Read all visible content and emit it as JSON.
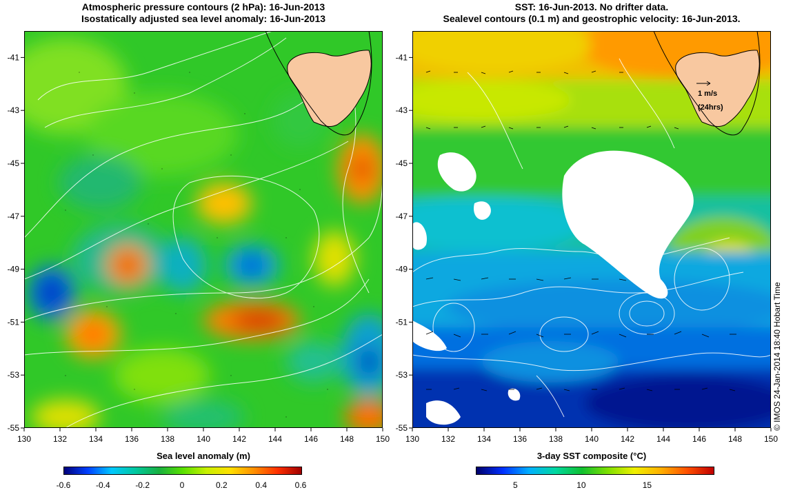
{
  "left_panel": {
    "title_line1": "Atmospheric pressure contours (2 hPa): 16-Jun-2013",
    "title_line2": "Isostatically adjusted sea level anomaly: 16-Jun-2013",
    "colorbar_title": "Sea level anomaly (m)",
    "colorbar_ticks": [
      "-0.6",
      "-0.4",
      "-0.2",
      "0",
      "0.2",
      "0.4",
      "0.6"
    ],
    "colorbar_range": [
      -0.6,
      0.6
    ]
  },
  "right_panel": {
    "title_line1": "SST: 16-Jun-2013. No drifter data.",
    "title_line2": "Sealevel contours (0.1 m) and geostrophic velocity: 16-Jun-2013.",
    "colorbar_title": "3-day SST composite (°C)",
    "colorbar_ticks": [
      "5",
      "10",
      "15"
    ],
    "colorbar_range": [
      2,
      20
    ],
    "velocity_scale_label": "1 m/s",
    "velocity_scale_sublabel": "(24hrs)"
  },
  "axes": {
    "x_ticks": [
      "130",
      "132",
      "134",
      "136",
      "138",
      "140",
      "142",
      "144",
      "146",
      "148",
      "150"
    ],
    "y_ticks": [
      "-41",
      "-43",
      "-45",
      "-47",
      "-49",
      "-51",
      "-53",
      "-55"
    ],
    "x_range": [
      130,
      150
    ],
    "y_range": [
      -55,
      -40
    ]
  },
  "copyright": "© IMOS 24-Jan-2014 18:40 Hobart Time",
  "colors": {
    "land": "#f8c8a0",
    "contour": "#ffffff",
    "coast": "#000000"
  }
}
